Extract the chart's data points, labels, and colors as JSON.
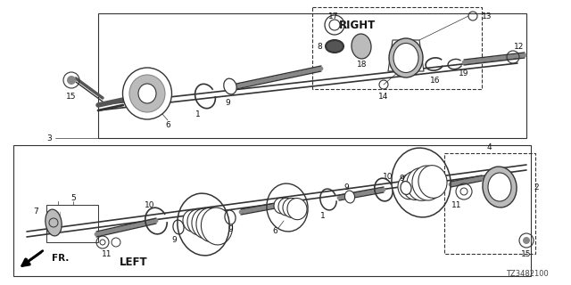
{
  "bg_color": "#ffffff",
  "line_color": "#333333",
  "gray_dark": "#555555",
  "gray_mid": "#888888",
  "gray_light": "#bbbbbb",
  "gray_fill": "#cccccc",
  "right_label": "RIGHT",
  "left_label": "LEFT",
  "fr_label": "FR.",
  "diagram_code": "TZ3482100",
  "figsize": [
    6.4,
    3.2
  ],
  "dpi": 100
}
